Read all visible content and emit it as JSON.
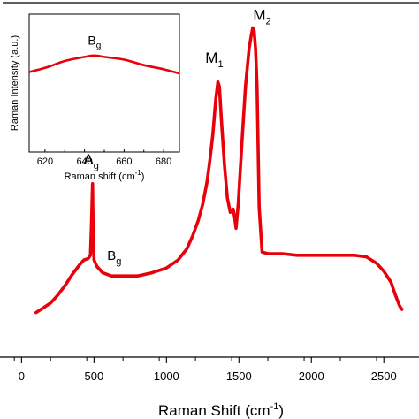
{
  "chart_data": [
    {
      "type": "line",
      "xlabel": "Raman Shift (cm",
      "xlabel_sup": "-1",
      "xlabel_close": ")",
      "ylabel": "",
      "xlim": [
        -100,
        2700
      ],
      "ylim": [
        -0.5,
        10.5
      ],
      "xticks": [
        0,
        500,
        1000,
        1500,
        2000,
        2500
      ],
      "grid": false,
      "line_color": "#e8000b",
      "series": [
        {
          "x": [
            100,
            150,
            200,
            250,
            300,
            350,
            400,
            430,
            460,
            475,
            482,
            490,
            495,
            500,
            510,
            520,
            560,
            620,
            680,
            740,
            800,
            900,
            1000,
            1080,
            1140,
            1180,
            1220,
            1250,
            1280,
            1300,
            1320,
            1340,
            1355,
            1365,
            1380,
            1400,
            1420,
            1440,
            1460,
            1470,
            1480,
            1495,
            1520,
            1545,
            1570,
            1585,
            1595,
            1605,
            1615,
            1625,
            1640,
            1660,
            1700,
            1800,
            1900,
            2000,
            2100,
            2200,
            2300,
            2380,
            2450,
            2500,
            2550,
            2580,
            2610,
            2625
          ],
          "y": [
            0.9,
            1.05,
            1.2,
            1.45,
            1.75,
            2.1,
            2.4,
            2.55,
            2.6,
            2.7,
            3.6,
            4.95,
            3.2,
            2.55,
            2.45,
            2.35,
            2.15,
            2.05,
            2.05,
            2.05,
            2.05,
            2.15,
            2.3,
            2.55,
            2.9,
            3.3,
            3.8,
            4.3,
            5.0,
            5.7,
            6.5,
            7.6,
            8.15,
            8.0,
            6.9,
            5.55,
            4.5,
            4.05,
            4.15,
            3.9,
            3.55,
            4.3,
            6.2,
            8.0,
            9.2,
            9.6,
            9.85,
            9.75,
            9.2,
            8.0,
            4.2,
            2.8,
            2.75,
            2.75,
            2.7,
            2.7,
            2.7,
            2.7,
            2.7,
            2.65,
            2.45,
            2.2,
            1.85,
            1.45,
            1.1,
            1.0
          ]
        }
      ],
      "annotations": [
        {
          "base": "A",
          "sub": "g",
          "x": 480,
          "y": 5.55
        },
        {
          "base": "B",
          "sub": "g",
          "x": 640,
          "y": 2.55
        },
        {
          "base": "M",
          "sub": "1",
          "x": 1330,
          "y": 8.75
        },
        {
          "base": "M",
          "sub": "2",
          "x": 1660,
          "y": 10.1
        }
      ]
    },
    {
      "type": "line",
      "xlabel": "Raman shift (cm",
      "xlabel_sup": "-1",
      "xlabel_close": ")",
      "ylabel": "Raman Intensity (a.u.)",
      "xlim": [
        612,
        688
      ],
      "ylim": [
        0,
        1
      ],
      "xticks": [
        620,
        640,
        660,
        680
      ],
      "grid": false,
      "line_color": "#e8000b",
      "series": [
        {
          "x": [
            612,
            620,
            630,
            640,
            645,
            650,
            660,
            670,
            680,
            688
          ],
          "y": [
            0.58,
            0.61,
            0.66,
            0.69,
            0.7,
            0.69,
            0.67,
            0.63,
            0.6,
            0.57
          ]
        }
      ],
      "annotations": [
        {
          "base": "B",
          "sub": "g",
          "x": 645,
          "y": 0.78
        }
      ]
    }
  ]
}
